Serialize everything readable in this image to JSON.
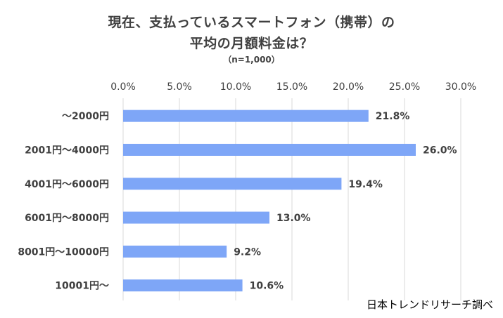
{
  "chart_data": {
    "type": "bar",
    "orientation": "horizontal",
    "title_line1": "現在、支払っているスマートフォン（携帯）の",
    "title_line2": "平均の月額料金は？",
    "subtitle": "（n=1,000）",
    "categories": [
      "～2000円",
      "2001円～4000円",
      "4001円～6000円",
      "6001円～8000円",
      "8001円～10000円",
      "10001円～"
    ],
    "values": [
      21.8,
      26.0,
      19.4,
      13.0,
      9.2,
      10.6
    ],
    "data_labels": [
      "21.8%",
      "26.0%",
      "19.4%",
      "13.0%",
      "9.2%",
      "10.6%"
    ],
    "x_ticks": [
      "0.0%",
      "5.0%",
      "10.0%",
      "15.0%",
      "20.0%",
      "25.0%",
      "30.0%"
    ],
    "xlim": [
      0,
      30
    ],
    "x_axis_position": "top",
    "grid": true,
    "bar_color": "#7ea6f7",
    "source": "日本トレンドリサーチ調べ"
  }
}
